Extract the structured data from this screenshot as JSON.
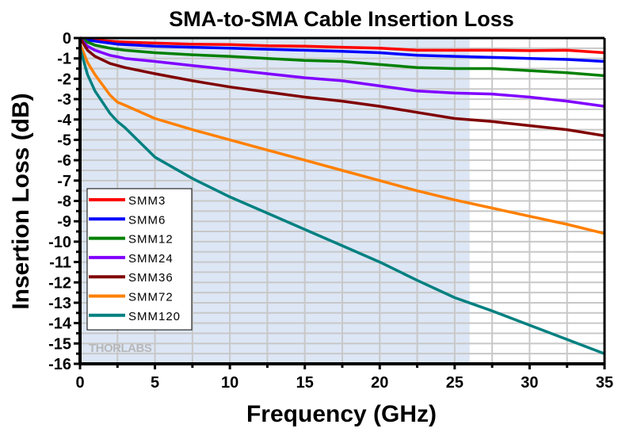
{
  "chart_data": {
    "type": "line",
    "title": "SMA-to-SMA Cable Insertion Loss",
    "xlabel": "Frequency (GHz)",
    "ylabel": "Insertion Loss (dB)",
    "xlim": [
      0,
      35
    ],
    "ylim": [
      -16,
      0
    ],
    "xticks": [
      0,
      5,
      10,
      15,
      20,
      25,
      30,
      35
    ],
    "yticks": [
      0,
      -1,
      -2,
      -3,
      -4,
      -5,
      -6,
      -7,
      -8,
      -9,
      -10,
      -11,
      -12,
      -13,
      -14,
      -15,
      -16
    ],
    "grid": true,
    "grid_minor_x_step": 2.5,
    "grid_minor_y_step": 0.5,
    "shaded_region": {
      "x_from": 0,
      "x_to": 26,
      "color": "#dce6f5"
    },
    "legend_position": "lower-left",
    "watermark": "THORLABS",
    "x": [
      0,
      0.5,
      1,
      2,
      2.5,
      3,
      5,
      7.5,
      10,
      12.5,
      15,
      17.5,
      20,
      22.5,
      25,
      27.5,
      30,
      32.5,
      35
    ],
    "series": [
      {
        "name": "SMM3",
        "color": "#ff0000",
        "values": [
          0,
          -0.05,
          -0.1,
          -0.15,
          -0.18,
          -0.2,
          -0.25,
          -0.3,
          -0.32,
          -0.38,
          -0.4,
          -0.45,
          -0.5,
          -0.6,
          -0.6,
          -0.6,
          -0.62,
          -0.6,
          -0.72
        ]
      },
      {
        "name": "SMM6",
        "color": "#0000ff",
        "values": [
          0,
          -0.1,
          -0.15,
          -0.25,
          -0.3,
          -0.32,
          -0.4,
          -0.45,
          -0.5,
          -0.55,
          -0.6,
          -0.65,
          -0.72,
          -0.85,
          -0.9,
          -0.95,
          -1.0,
          -1.05,
          -1.15
        ]
      },
      {
        "name": "SMM12",
        "color": "#008000",
        "values": [
          0,
          -0.2,
          -0.35,
          -0.5,
          -0.55,
          -0.6,
          -0.72,
          -0.82,
          -0.9,
          -1.0,
          -1.1,
          -1.15,
          -1.3,
          -1.45,
          -1.5,
          -1.5,
          -1.6,
          -1.7,
          -1.85
        ]
      },
      {
        "name": "SMM24",
        "color": "#8000ff",
        "values": [
          0,
          -0.4,
          -0.6,
          -0.85,
          -0.92,
          -1.0,
          -1.15,
          -1.35,
          -1.55,
          -1.75,
          -1.95,
          -2.1,
          -2.35,
          -2.6,
          -2.7,
          -2.75,
          -2.9,
          -3.1,
          -3.35
        ]
      },
      {
        "name": "SMM36",
        "color": "#800000",
        "values": [
          0,
          -0.6,
          -0.9,
          -1.25,
          -1.35,
          -1.45,
          -1.75,
          -2.1,
          -2.4,
          -2.65,
          -2.9,
          -3.1,
          -3.35,
          -3.65,
          -3.95,
          -4.1,
          -4.3,
          -4.5,
          -4.8
        ]
      },
      {
        "name": "SMM72",
        "color": "#ff8000",
        "values": [
          -0.3,
          -1.2,
          -1.8,
          -2.8,
          -3.15,
          -3.3,
          -3.95,
          -4.5,
          -5.0,
          -5.5,
          -6.0,
          -6.5,
          -7.0,
          -7.5,
          -7.95,
          -8.35,
          -8.75,
          -9.15,
          -9.6
        ]
      },
      {
        "name": "SMM120",
        "color": "#008080",
        "values": [
          -0.5,
          -1.8,
          -2.6,
          -3.7,
          -4.1,
          -4.4,
          -5.85,
          -6.9,
          -7.8,
          -8.6,
          -9.4,
          -10.2,
          -11.0,
          -11.9,
          -12.75,
          -13.4,
          -14.1,
          -14.8,
          -15.5
        ]
      }
    ]
  }
}
